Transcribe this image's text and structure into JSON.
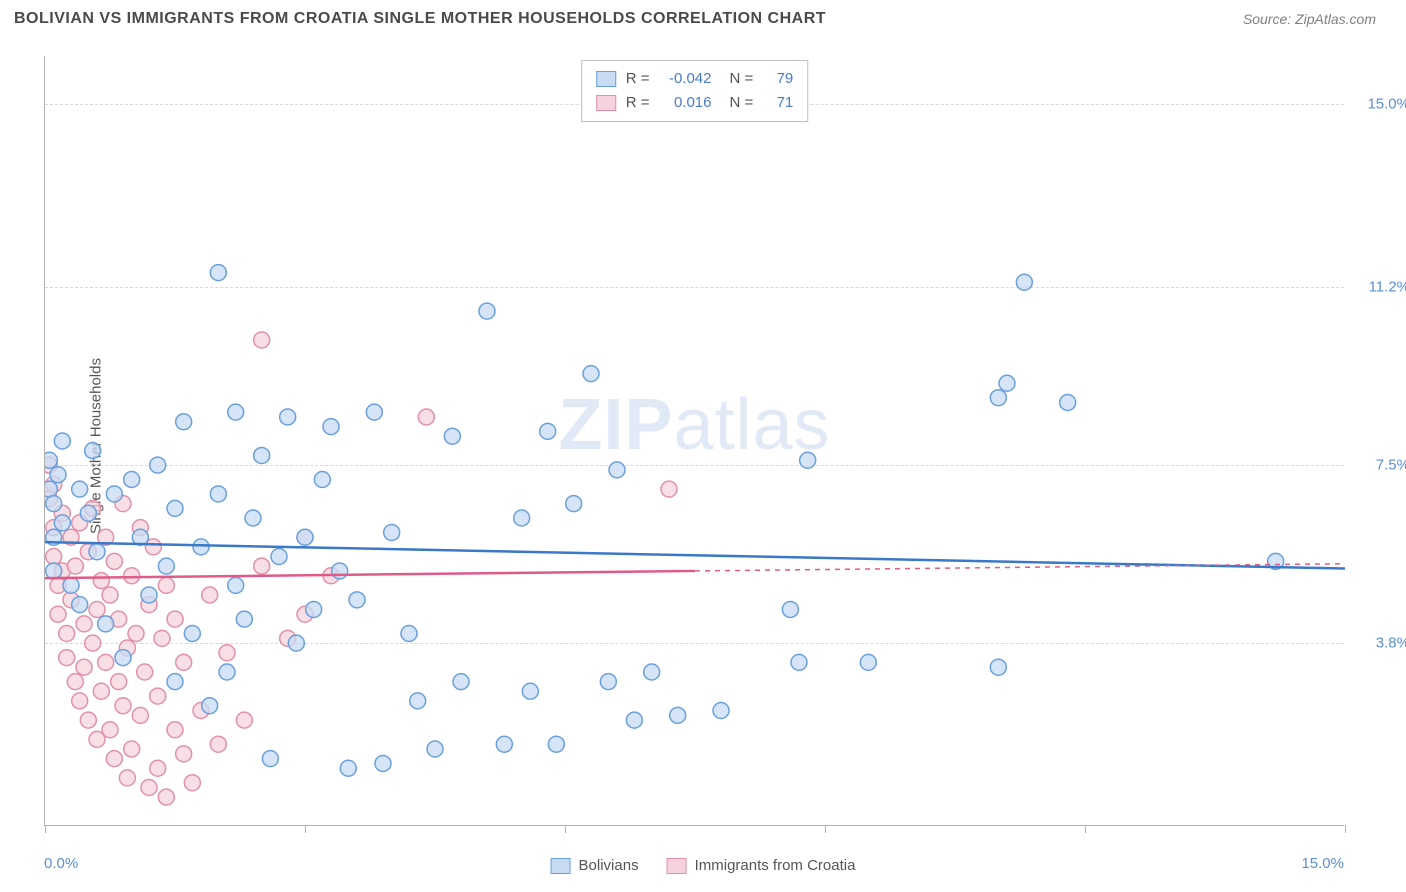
{
  "title": "BOLIVIAN VS IMMIGRANTS FROM CROATIA SINGLE MOTHER HOUSEHOLDS CORRELATION CHART",
  "source": "Source: ZipAtlas.com",
  "ylabel": "Single Mother Households",
  "watermark_bold": "ZIP",
  "watermark_rest": "atlas",
  "chart": {
    "type": "scatter",
    "xlim": [
      0,
      15
    ],
    "ylim": [
      0,
      16
    ],
    "x_axis_label_left": "0.0%",
    "x_axis_label_right": "15.0%",
    "ytick_labels": [
      "3.8%",
      "7.5%",
      "11.2%",
      "15.0%"
    ],
    "ytick_vals": [
      3.8,
      7.5,
      11.2,
      15.0
    ],
    "xtick_vals": [
      0,
      3,
      6,
      9,
      12,
      15
    ],
    "grid_color": "#d8d8d8",
    "axis_color": "#b0b0b0",
    "background_color": "#ffffff",
    "tick_label_color": "#5b8fd6",
    "tick_label_fontsize": 15,
    "marker_radius": 8,
    "marker_stroke_width": 1.5,
    "trend_line_width": 2.5,
    "series": [
      {
        "name": "Bolivians",
        "fill": "#c7dbf3",
        "stroke": "#6a9fde",
        "line_color": "#3a78c8",
        "R": "-0.042",
        "N": "79",
        "trend": {
          "x1": 0,
          "y1": 5.9,
          "x2": 15,
          "y2": 5.35,
          "dash_from": null
        },
        "points": [
          [
            0.05,
            7.6
          ],
          [
            0.05,
            7.0
          ],
          [
            0.1,
            6.7
          ],
          [
            0.1,
            6.0
          ],
          [
            0.1,
            5.3
          ],
          [
            0.15,
            7.3
          ],
          [
            0.2,
            8.0
          ],
          [
            0.2,
            6.3
          ],
          [
            0.3,
            5.0
          ],
          [
            0.4,
            7.0
          ],
          [
            0.4,
            4.6
          ],
          [
            0.5,
            6.5
          ],
          [
            0.55,
            7.8
          ],
          [
            0.6,
            5.7
          ],
          [
            0.7,
            4.2
          ],
          [
            0.8,
            6.9
          ],
          [
            0.9,
            3.5
          ],
          [
            1.0,
            7.2
          ],
          [
            1.1,
            6.0
          ],
          [
            1.2,
            4.8
          ],
          [
            1.3,
            7.5
          ],
          [
            1.4,
            5.4
          ],
          [
            1.5,
            6.6
          ],
          [
            1.5,
            3.0
          ],
          [
            1.6,
            8.4
          ],
          [
            1.7,
            4.0
          ],
          [
            1.8,
            5.8
          ],
          [
            1.9,
            2.5
          ],
          [
            2.0,
            11.5
          ],
          [
            2.0,
            6.9
          ],
          [
            2.1,
            3.2
          ],
          [
            2.2,
            8.6
          ],
          [
            2.2,
            5.0
          ],
          [
            2.3,
            4.3
          ],
          [
            2.4,
            6.4
          ],
          [
            2.5,
            7.7
          ],
          [
            2.6,
            1.4
          ],
          [
            2.7,
            5.6
          ],
          [
            2.8,
            8.5
          ],
          [
            2.9,
            3.8
          ],
          [
            3.0,
            6.0
          ],
          [
            3.1,
            4.5
          ],
          [
            3.2,
            7.2
          ],
          [
            3.3,
            8.3
          ],
          [
            3.4,
            5.3
          ],
          [
            3.5,
            1.2
          ],
          [
            3.6,
            4.7
          ],
          [
            3.8,
            8.6
          ],
          [
            3.9,
            1.3
          ],
          [
            4.0,
            6.1
          ],
          [
            4.2,
            4.0
          ],
          [
            4.3,
            2.6
          ],
          [
            4.5,
            1.6
          ],
          [
            4.7,
            8.1
          ],
          [
            4.8,
            3.0
          ],
          [
            5.1,
            10.7
          ],
          [
            5.3,
            1.7
          ],
          [
            5.5,
            6.4
          ],
          [
            5.6,
            2.8
          ],
          [
            5.8,
            8.2
          ],
          [
            5.9,
            1.7
          ],
          [
            6.1,
            6.7
          ],
          [
            6.3,
            9.4
          ],
          [
            6.5,
            3.0
          ],
          [
            6.6,
            7.4
          ],
          [
            6.8,
            2.2
          ],
          [
            7.0,
            3.2
          ],
          [
            7.3,
            2.3
          ],
          [
            7.8,
            2.4
          ],
          [
            8.6,
            4.5
          ],
          [
            8.7,
            3.4
          ],
          [
            8.8,
            7.6
          ],
          [
            9.5,
            3.4
          ],
          [
            11.0,
            8.9
          ],
          [
            11.1,
            9.2
          ],
          [
            11.3,
            11.3
          ],
          [
            11.0,
            3.3
          ],
          [
            11.8,
            8.8
          ],
          [
            14.2,
            5.5
          ]
        ]
      },
      {
        "name": "Immigrants from Croatia",
        "fill": "#f6d3dc",
        "stroke": "#e290a8",
        "line_color": "#e05a88",
        "R": "0.016",
        "N": "71",
        "trend": {
          "x1": 0,
          "y1": 5.15,
          "x2": 15,
          "y2": 5.45,
          "dash_from": 7.5
        },
        "points": [
          [
            0.05,
            7.5
          ],
          [
            0.05,
            6.8
          ],
          [
            0.1,
            7.1
          ],
          [
            0.1,
            6.2
          ],
          [
            0.1,
            5.6
          ],
          [
            0.15,
            5.0
          ],
          [
            0.15,
            4.4
          ],
          [
            0.2,
            6.5
          ],
          [
            0.2,
            5.3
          ],
          [
            0.25,
            4.0
          ],
          [
            0.25,
            3.5
          ],
          [
            0.3,
            6.0
          ],
          [
            0.3,
            4.7
          ],
          [
            0.35,
            3.0
          ],
          [
            0.35,
            5.4
          ],
          [
            0.4,
            6.3
          ],
          [
            0.4,
            2.6
          ],
          [
            0.45,
            4.2
          ],
          [
            0.45,
            3.3
          ],
          [
            0.5,
            5.7
          ],
          [
            0.5,
            2.2
          ],
          [
            0.55,
            6.6
          ],
          [
            0.55,
            3.8
          ],
          [
            0.6,
            4.5
          ],
          [
            0.6,
            1.8
          ],
          [
            0.65,
            5.1
          ],
          [
            0.65,
            2.8
          ],
          [
            0.7,
            6.0
          ],
          [
            0.7,
            3.4
          ],
          [
            0.75,
            4.8
          ],
          [
            0.75,
            2.0
          ],
          [
            0.8,
            5.5
          ],
          [
            0.8,
            1.4
          ],
          [
            0.85,
            3.0
          ],
          [
            0.85,
            4.3
          ],
          [
            0.9,
            6.7
          ],
          [
            0.9,
            2.5
          ],
          [
            0.95,
            1.0
          ],
          [
            0.95,
            3.7
          ],
          [
            1.0,
            5.2
          ],
          [
            1.0,
            1.6
          ],
          [
            1.05,
            4.0
          ],
          [
            1.1,
            2.3
          ],
          [
            1.1,
            6.2
          ],
          [
            1.15,
            3.2
          ],
          [
            1.2,
            0.8
          ],
          [
            1.2,
            4.6
          ],
          [
            1.25,
            5.8
          ],
          [
            1.3,
            1.2
          ],
          [
            1.3,
            2.7
          ],
          [
            1.35,
            3.9
          ],
          [
            1.4,
            0.6
          ],
          [
            1.4,
            5.0
          ],
          [
            1.5,
            2.0
          ],
          [
            1.5,
            4.3
          ],
          [
            1.6,
            1.5
          ],
          [
            1.6,
            3.4
          ],
          [
            1.7,
            0.9
          ],
          [
            1.8,
            2.4
          ],
          [
            1.9,
            4.8
          ],
          [
            2.0,
            1.7
          ],
          [
            2.1,
            3.6
          ],
          [
            2.3,
            2.2
          ],
          [
            2.5,
            5.4
          ],
          [
            2.5,
            10.1
          ],
          [
            2.8,
            3.9
          ],
          [
            3.0,
            6.0
          ],
          [
            3.0,
            4.4
          ],
          [
            3.3,
            5.2
          ],
          [
            4.4,
            8.5
          ],
          [
            7.2,
            7.0
          ]
        ]
      }
    ]
  },
  "legend_top": {
    "rlabel": "R =",
    "nlabel": "N ="
  }
}
